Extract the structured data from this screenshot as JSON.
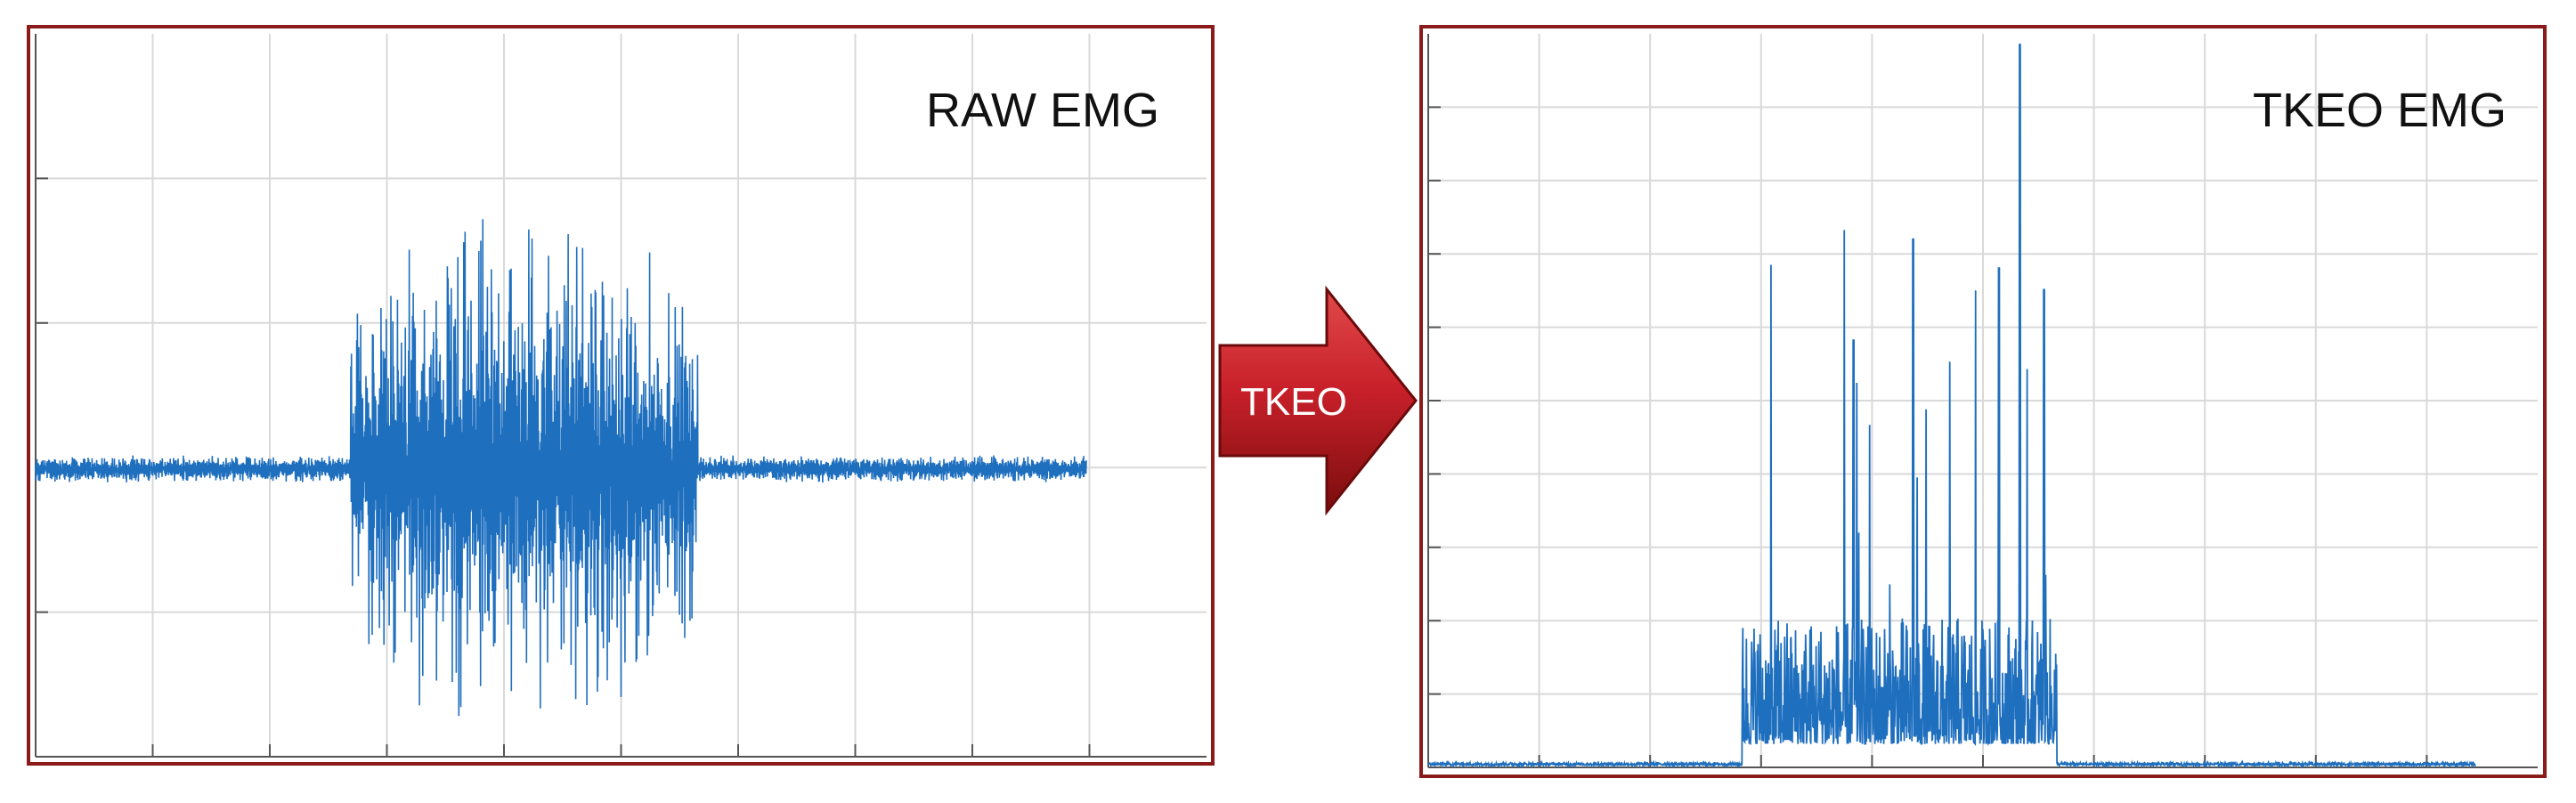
{
  "panels": {
    "raw": {
      "label": "RAW EMG"
    },
    "tkeo": {
      "label": "TKEO EMG"
    }
  },
  "arrow": {
    "label": "TKEO"
  },
  "colors": {
    "frame": "#8b1a1a",
    "signal": "#1f6fbf",
    "grid": "#d9d9d9",
    "axis": "#555555",
    "arrow_dark": "#7a0d0d",
    "arrow_light": "#c8202a",
    "arrow_text": "#ffffff"
  },
  "chart_data": [
    {
      "type": "line",
      "name": "raw",
      "signal": {
        "baseline": 0,
        "noise_amplitude": 0.05,
        "burst_start": 0.3,
        "burst_end": 0.63,
        "burst_amplitude": 1.0,
        "peak": 1.06,
        "trough": -0.95
      },
      "grid": true
    },
    {
      "type": "line",
      "name": "tkeo",
      "signal": {
        "baseline": 0,
        "burst_start": 0.3,
        "burst_end": 0.6,
        "peak": 1.0,
        "noise_amplitude": 0.004
      },
      "grid": true
    }
  ]
}
